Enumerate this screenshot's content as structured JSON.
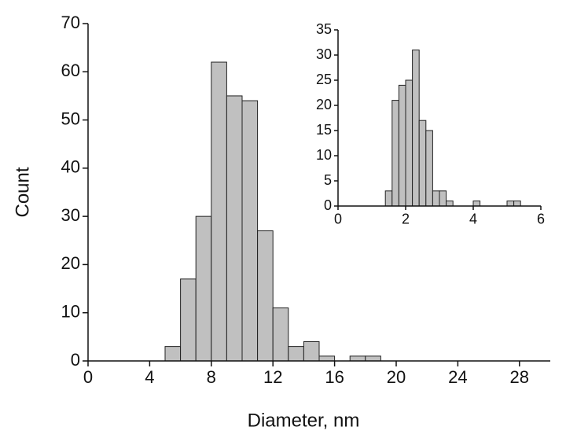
{
  "chart_data": [
    {
      "type": "histogram",
      "x_label": "Diameter, nm",
      "y_label": "Count",
      "bins": [
        5,
        6,
        7,
        8,
        9,
        10,
        11,
        12,
        13,
        14,
        15,
        16,
        17,
        18,
        19
      ],
      "values": [
        3,
        17,
        30,
        62,
        55,
        54,
        27,
        11,
        3,
        4,
        1,
        0,
        1,
        1
      ],
      "color": "#c0c0c0",
      "xlim": [
        0,
        30
      ],
      "xticks": [
        0,
        4,
        8,
        12,
        16,
        20,
        24,
        28
      ],
      "ylim": [
        0,
        70
      ],
      "yticks": [
        0,
        10,
        20,
        30,
        40,
        50,
        60,
        70
      ]
    },
    {
      "type": "histogram",
      "bins": [
        1.4,
        1.6,
        1.8,
        2.0,
        2.2,
        2.4,
        2.6,
        2.8,
        3.0,
        3.2,
        3.4,
        3.6,
        3.8,
        4.0,
        4.2,
        4.4,
        4.6,
        4.8,
        5.0,
        5.2,
        5.4
      ],
      "values": [
        3,
        21,
        24,
        25,
        31,
        17,
        15,
        3,
        3,
        1,
        0,
        0,
        0,
        1,
        0,
        0,
        0,
        0,
        1,
        1
      ],
      "color": "#c0c0c0",
      "xlim": [
        0,
        6
      ],
      "xticks": [
        0,
        2,
        4,
        6
      ],
      "ylim": [
        0,
        35
      ],
      "yticks": [
        0,
        5,
        10,
        15,
        20,
        25,
        30,
        35
      ]
    }
  ]
}
